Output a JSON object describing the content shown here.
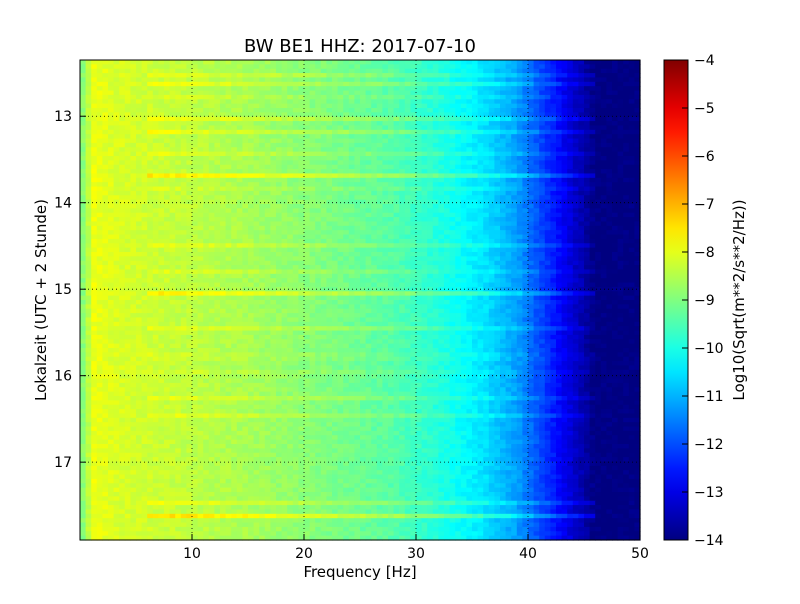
{
  "chart_data": {
    "type": "heatmap",
    "title": "BW BE1 HHZ: 2017-07-10",
    "xlabel": "Frequency [Hz]",
    "ylabel": "Lokalzeit (UTC + 2 Stunde)",
    "xlim": [
      0,
      50
    ],
    "ylim": [
      12.35,
      17.9
    ],
    "y_inverted": true,
    "xticks": [
      10,
      20,
      30,
      40,
      50
    ],
    "yticks": [
      13,
      14,
      15,
      16,
      17
    ],
    "grid": true,
    "colormap": "jet",
    "colorbar": {
      "label": "Log10(Sqrt(m**2/s**2/Hz))",
      "range": [
        -14,
        -4
      ],
      "ticks": [
        -4,
        -5,
        -6,
        -7,
        -8,
        -9,
        -10,
        -11,
        -12,
        -13,
        -14
      ]
    },
    "spectrum_profile": [
      {
        "freq_hz": 0.5,
        "log_amp": -8.9
      },
      {
        "freq_hz": 1.0,
        "log_amp": -7.9
      },
      {
        "freq_hz": 3.0,
        "log_amp": -8.1
      },
      {
        "freq_hz": 8.0,
        "log_amp": -8.3
      },
      {
        "freq_hz": 15.0,
        "log_amp": -8.6
      },
      {
        "freq_hz": 22.0,
        "log_amp": -9.0
      },
      {
        "freq_hz": 28.0,
        "log_amp": -9.4
      },
      {
        "freq_hz": 32.0,
        "log_amp": -9.9
      },
      {
        "freq_hz": 36.0,
        "log_amp": -10.5
      },
      {
        "freq_hz": 39.0,
        "log_amp": -11.2
      },
      {
        "freq_hz": 41.0,
        "log_amp": -12.0
      },
      {
        "freq_hz": 43.0,
        "log_amp": -12.8
      },
      {
        "freq_hz": 45.0,
        "log_amp": -13.6
      },
      {
        "freq_hz": 46.0,
        "log_amp": -14.0
      },
      {
        "freq_hz": 50.0,
        "log_amp": -14.0
      }
    ],
    "bright_bands": [
      {
        "time_h": 12.52,
        "strength": 0.5
      },
      {
        "time_h": 12.62,
        "strength": 0.6
      },
      {
        "time_h": 12.76,
        "strength": 0.5
      },
      {
        "time_h": 13.02,
        "strength": 0.8
      },
      {
        "time_h": 13.18,
        "strength": 0.5
      },
      {
        "time_h": 13.45,
        "strength": 0.6
      },
      {
        "time_h": 13.68,
        "strength": 1.0
      },
      {
        "time_h": 13.82,
        "strength": 0.5
      },
      {
        "time_h": 14.48,
        "strength": 0.7
      },
      {
        "time_h": 14.78,
        "strength": 0.6
      },
      {
        "time_h": 15.05,
        "strength": 0.7
      },
      {
        "time_h": 15.45,
        "strength": 0.4
      },
      {
        "time_h": 15.78,
        "strength": 0.8
      },
      {
        "time_h": 15.98,
        "strength": 0.6
      },
      {
        "time_h": 16.24,
        "strength": 1.0
      },
      {
        "time_h": 16.45,
        "strength": 0.6
      },
      {
        "time_h": 17.48,
        "strength": 0.7
      },
      {
        "time_h": 17.62,
        "strength": 1.0
      }
    ]
  }
}
